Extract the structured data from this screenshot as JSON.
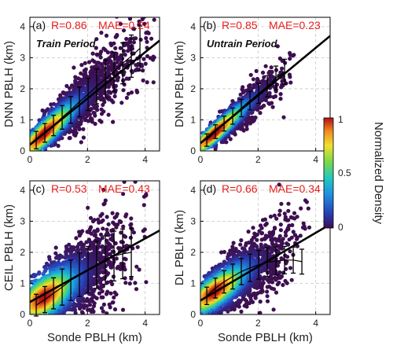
{
  "colors": {
    "stat_text": "#e81d1d",
    "fit_line": "#000000",
    "errorbar": "#000000",
    "grid": "#c8c8c8",
    "low_density": "#3d0f50"
  },
  "chart_data": [
    {
      "type": "scatter",
      "panel": "(a)",
      "stats": "R=0.86 MAE=0.24",
      "period": "Train Period",
      "xlabel": "",
      "ylabel": "DNN PBLH (km)",
      "xlim": [
        0,
        4.5
      ],
      "ylim": [
        0,
        4.3
      ],
      "xticks": [
        0,
        2,
        4
      ],
      "yticks": [
        0,
        1,
        2,
        3,
        4
      ],
      "grid": true,
      "fit_line": {
        "x": [
          0,
          4.5
        ],
        "y": [
          0.2,
          3.55
        ]
      },
      "bin_means": {
        "x": [
          0.22,
          0.52,
          0.82,
          1.12,
          1.42,
          1.72,
          2.02,
          2.32,
          2.62,
          2.92,
          3.22,
          3.52,
          3.82
        ],
        "y": [
          0.35,
          0.58,
          0.82,
          1.08,
          1.32,
          1.58,
          1.82,
          2.08,
          2.32,
          2.55,
          2.82,
          3.05,
          3.3
        ],
        "err": [
          0.28,
          0.3,
          0.33,
          0.38,
          0.43,
          0.48,
          0.52,
          0.56,
          0.6,
          0.63,
          0.66,
          0.68,
          0.72
        ]
      },
      "scatter_model": {
        "slope": 0.82,
        "intercept": 0.15,
        "spread": 0.36,
        "xmax": 4.4,
        "n": 2200
      }
    },
    {
      "type": "scatter",
      "panel": "(b)",
      "stats": "R=0.85 MAE=0.23",
      "period": "Untrain Period",
      "xlabel": "",
      "ylabel": "DNN PBLH (km)",
      "xlim": [
        0,
        4.5
      ],
      "ylim": [
        0,
        4.3
      ],
      "xticks": [
        0,
        2,
        4
      ],
      "yticks": [
        0,
        1,
        2,
        3,
        4
      ],
      "grid": true,
      "fit_line": {
        "x": [
          0,
          4.5
        ],
        "y": [
          0.25,
          3.7
        ]
      },
      "bin_means": {
        "x": [
          0.22,
          0.52,
          0.82,
          1.12,
          1.42,
          1.72,
          2.02,
          2.32,
          2.62,
          2.92
        ],
        "y": [
          0.35,
          0.62,
          0.88,
          1.12,
          1.38,
          1.62,
          1.85,
          2.08,
          2.35,
          2.55
        ],
        "err": [
          0.2,
          0.22,
          0.24,
          0.26,
          0.28,
          0.3,
          0.32,
          0.34,
          0.38,
          0.4
        ]
      },
      "scatter_model": {
        "slope": 0.8,
        "intercept": 0.18,
        "spread": 0.26,
        "xmax": 3.3,
        "n": 1400
      }
    },
    {
      "type": "scatter",
      "panel": "(c)",
      "stats": "R=0.53 MAE=0.43",
      "period": "",
      "xlabel": "Sonde PBLH (km)",
      "ylabel": "CEIL PBLH (km)",
      "xlim": [
        0,
        4.5
      ],
      "ylim": [
        0,
        4.3
      ],
      "xticks": [
        0,
        2,
        4
      ],
      "yticks": [
        0,
        1,
        2,
        3,
        4
      ],
      "grid": true,
      "fit_line": {
        "x": [
          0,
          4.5
        ],
        "y": [
          0.4,
          2.7
        ]
      },
      "bin_means": {
        "x": [
          0.22,
          0.52,
          0.82,
          1.12,
          1.42,
          1.72,
          2.02,
          2.32,
          2.62,
          2.92,
          3.22,
          3.52
        ],
        "y": [
          0.3,
          0.48,
          0.68,
          0.88,
          1.1,
          1.28,
          1.45,
          1.6,
          1.75,
          1.88,
          1.95,
          2.0
        ],
        "err": [
          0.35,
          0.42,
          0.5,
          0.58,
          0.65,
          0.7,
          0.74,
          0.76,
          0.78,
          0.8,
          0.8,
          0.78
        ]
      },
      "scatter_model": {
        "slope": 0.52,
        "intercept": 0.3,
        "spread": 0.6,
        "xmax": 4.1,
        "n": 2200
      }
    },
    {
      "type": "scatter",
      "panel": "(d)",
      "stats": "R=0.66 MAE=0.34",
      "period": "",
      "xlabel": "Sonde PBLH (km)",
      "ylabel": "DL PBLH (km)",
      "xlim": [
        0,
        4.5
      ],
      "ylim": [
        0,
        4.3
      ],
      "xticks": [
        0,
        2,
        4
      ],
      "yticks": [
        0,
        1,
        2,
        3,
        4
      ],
      "grid": true,
      "fit_line": {
        "x": [
          0,
          4.5
        ],
        "y": [
          0.45,
          2.9
        ]
      },
      "bin_means": {
        "x": [
          0.22,
          0.52,
          0.82,
          1.12,
          1.42,
          1.72,
          2.02,
          2.32,
          2.62,
          2.92,
          3.22,
          3.52
        ],
        "y": [
          0.6,
          0.85,
          1.05,
          1.22,
          1.38,
          1.5,
          1.6,
          1.68,
          1.72,
          1.75,
          1.75,
          1.7
        ],
        "err": [
          0.28,
          0.32,
          0.36,
          0.4,
          0.42,
          0.44,
          0.46,
          0.46,
          0.45,
          0.44,
          0.42,
          0.4
        ]
      },
      "scatter_model": {
        "slope": 0.58,
        "intercept": 0.45,
        "spread": 0.45,
        "xmax": 3.8,
        "n": 2200
      }
    }
  ],
  "colorbar": {
    "label": "Normalized Density",
    "ticks": [
      "1",
      "0.5",
      "0"
    ],
    "colormap": "jet"
  }
}
